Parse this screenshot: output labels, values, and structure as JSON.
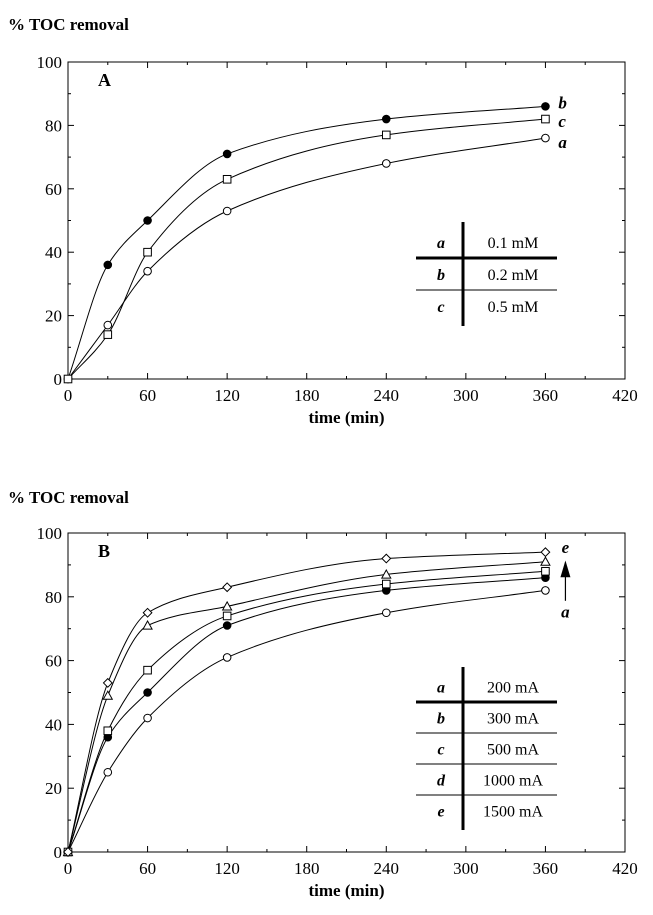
{
  "chart_data": [
    {
      "type": "line",
      "panel_label": "A",
      "ylabel": "% TOC removal",
      "xlabel": "time (min)",
      "xlim": [
        0,
        420
      ],
      "ylim": [
        0,
        100
      ],
      "xticks": [
        0,
        60,
        120,
        180,
        240,
        300,
        360,
        420
      ],
      "yticks": [
        0,
        20,
        40,
        60,
        80,
        100
      ],
      "grid": false,
      "series": [
        {
          "name": "a",
          "marker": "open-circle",
          "x": [
            0,
            30,
            60,
            120,
            240,
            360
          ],
          "values": [
            0,
            17,
            34,
            53,
            68,
            76
          ]
        },
        {
          "name": "b",
          "marker": "filled-circle",
          "x": [
            0,
            30,
            60,
            120,
            240,
            360
          ],
          "values": [
            0,
            36,
            50,
            71,
            82,
            86
          ]
        },
        {
          "name": "c",
          "marker": "open-square",
          "x": [
            0,
            30,
            60,
            120,
            240,
            360
          ],
          "values": [
            0,
            14,
            40,
            63,
            77,
            82
          ]
        }
      ],
      "end_labels": [
        "b",
        "c",
        "a"
      ],
      "legend_table": {
        "rows": [
          {
            "key": "a",
            "value": "0.1 mM"
          },
          {
            "key": "b",
            "value": "0.2 mM"
          },
          {
            "key": "c",
            "value": "0.5 mM"
          }
        ]
      }
    },
    {
      "type": "line",
      "panel_label": "B",
      "ylabel": "% TOC removal",
      "xlabel": "time (min)",
      "xlim": [
        0,
        420
      ],
      "ylim": [
        0,
        100
      ],
      "xticks": [
        0,
        60,
        120,
        180,
        240,
        300,
        360,
        420
      ],
      "yticks": [
        0,
        20,
        40,
        60,
        80,
        100
      ],
      "grid": false,
      "series": [
        {
          "name": "a",
          "marker": "open-circle",
          "x": [
            0,
            30,
            60,
            120,
            240,
            360
          ],
          "values": [
            0,
            25,
            42,
            61,
            75,
            82
          ]
        },
        {
          "name": "b",
          "marker": "filled-circle",
          "x": [
            0,
            30,
            60,
            120,
            240,
            360
          ],
          "values": [
            0,
            36,
            50,
            71,
            82,
            86
          ]
        },
        {
          "name": "c",
          "marker": "open-square",
          "x": [
            0,
            30,
            60,
            120,
            240,
            360
          ],
          "values": [
            0,
            38,
            57,
            74,
            84,
            88
          ]
        },
        {
          "name": "d",
          "marker": "open-triangle",
          "x": [
            0,
            30,
            60,
            120,
            240,
            360
          ],
          "values": [
            0,
            49,
            71,
            77,
            87,
            91
          ]
        },
        {
          "name": "e",
          "marker": "open-diamond",
          "x": [
            0,
            30,
            60,
            120,
            240,
            360
          ],
          "values": [
            0,
            53,
            75,
            83,
            92,
            94
          ]
        }
      ],
      "end_labels": [
        "e",
        "a"
      ],
      "legend_table": {
        "rows": [
          {
            "key": "a",
            "value": "200 mA"
          },
          {
            "key": "b",
            "value": "300 mA"
          },
          {
            "key": "c",
            "value": "500 mA"
          },
          {
            "key": "d",
            "value": "1000 mA"
          },
          {
            "key": "e",
            "value": "1500 mA"
          }
        ]
      }
    }
  ]
}
